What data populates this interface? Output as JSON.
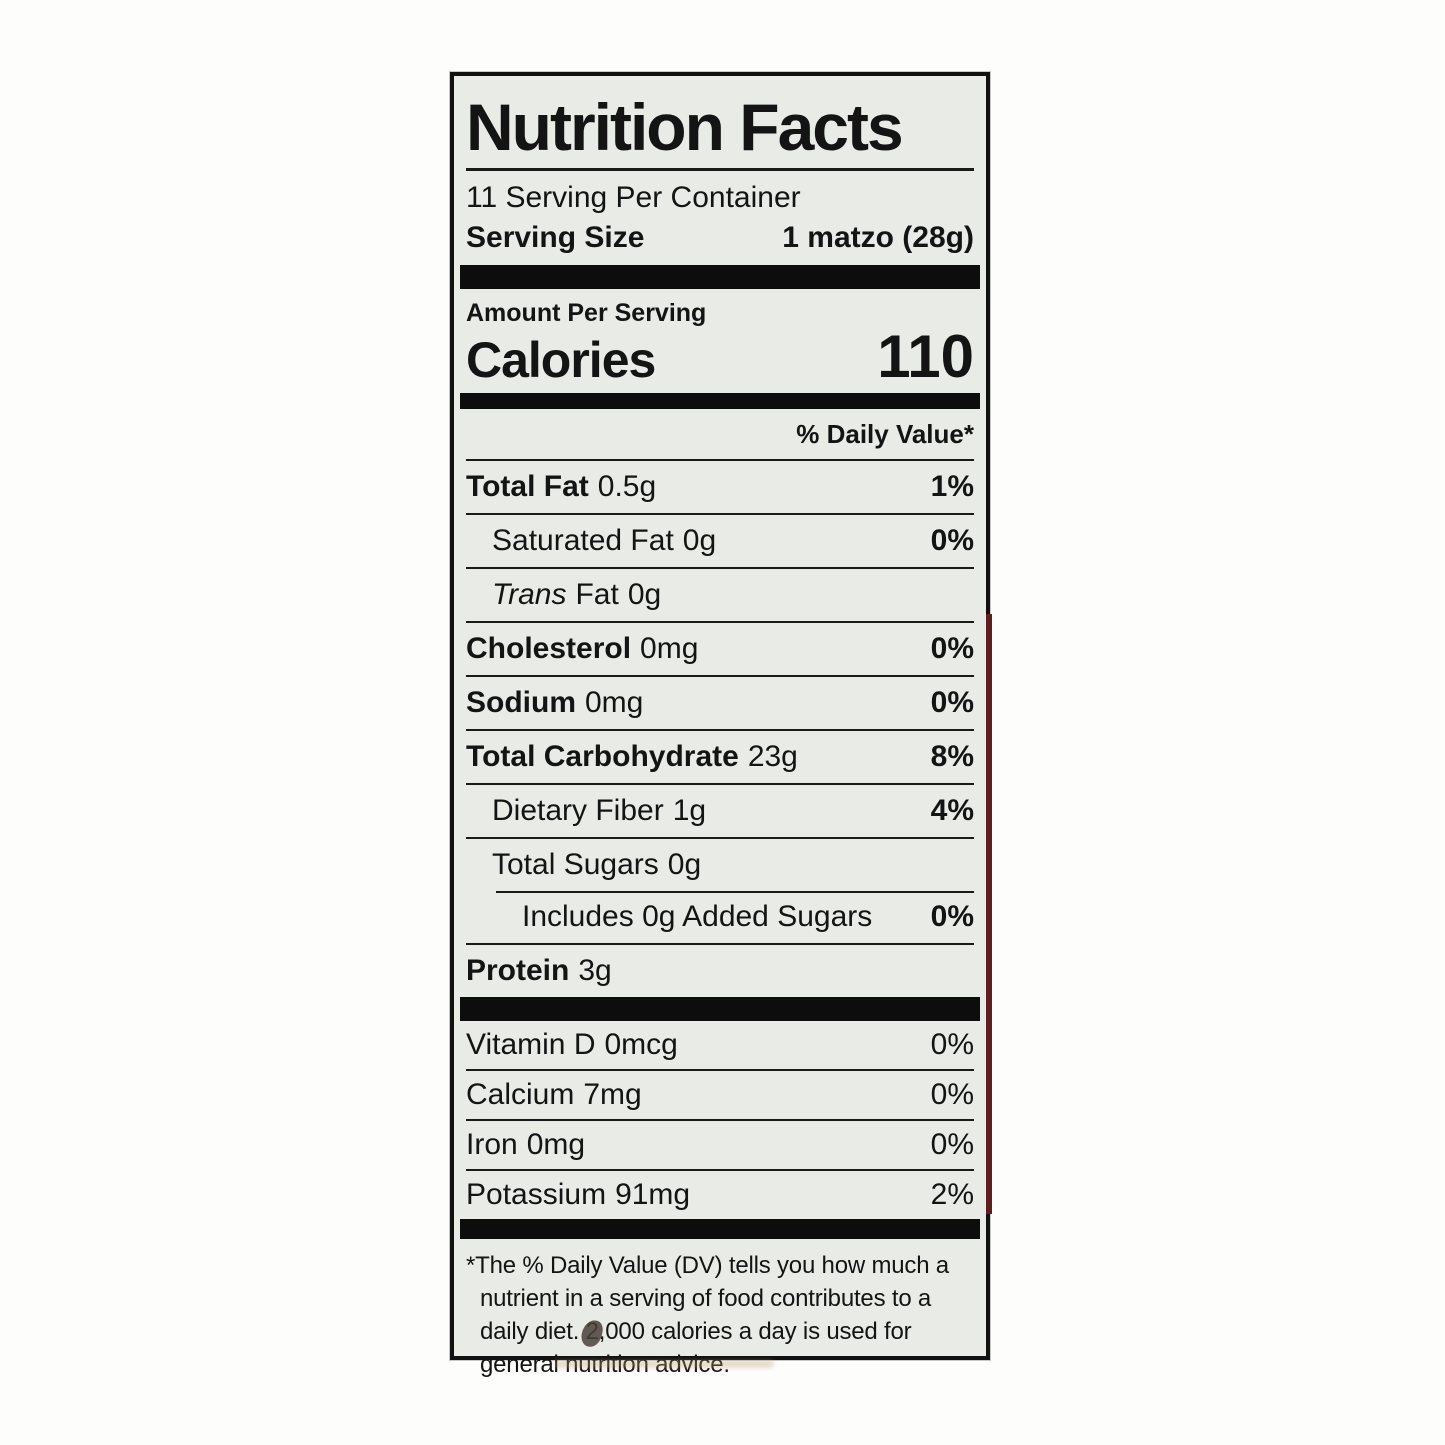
{
  "label": {
    "title": "Nutrition Facts",
    "servings_per_container": "11 Serving Per Container",
    "serving_size_label": "Serving Size",
    "serving_size_value": "1 matzo (28g)",
    "amount_per_serving": "Amount Per Serving",
    "calories_label": "Calories",
    "calories_value": "110",
    "daily_value_header": "% Daily Value*",
    "nutrients": [
      {
        "name": "Total Fat",
        "amount": "0.5g",
        "dv": "1%"
      },
      {
        "name": "Saturated Fat",
        "amount": "0g",
        "dv": "0%"
      },
      {
        "name_italic": "Trans",
        "name": "Fat",
        "amount": "0g",
        "dv": ""
      },
      {
        "name": "Cholesterol",
        "amount": "0mg",
        "dv": "0%"
      },
      {
        "name": "Sodium",
        "amount": "0mg",
        "dv": "0%"
      },
      {
        "name": "Total Carbohydrate",
        "amount": "23g",
        "dv": "8%"
      },
      {
        "name": "Dietary Fiber",
        "amount": "1g",
        "dv": "4%"
      },
      {
        "name": "Total Sugars",
        "amount": "0g",
        "dv": ""
      },
      {
        "name": "Includes 0g Added Sugars",
        "amount": "",
        "dv": "0%"
      },
      {
        "name": "Protein",
        "amount": "3g",
        "dv": ""
      }
    ],
    "micronutrients": [
      {
        "name": "Vitamin D",
        "amount": "0mcg",
        "dv": "0%"
      },
      {
        "name": "Calcium",
        "amount": "7mg",
        "dv": "0%"
      },
      {
        "name": "Iron",
        "amount": "0mg",
        "dv": "0%"
      },
      {
        "name": "Potassium",
        "amount": "91mg",
        "dv": "2%"
      }
    ],
    "footnote_lines": [
      "*The % Daily Value (DV) tells you how much a",
      "nutrient in a serving of food contributes to a",
      "daily diet. 2,000 calories a day is used for",
      "general nutrition advice."
    ],
    "colors": {
      "label_background": "#e9ebe7",
      "ink": "#141414",
      "package_edge_red": "#5d1e1e"
    }
  }
}
